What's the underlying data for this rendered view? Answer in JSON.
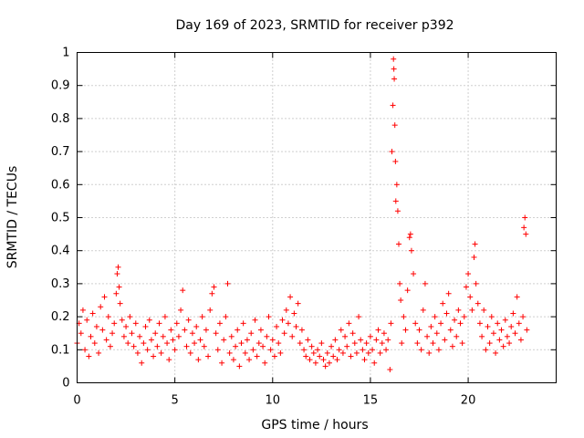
{
  "chart_data": {
    "type": "scatter",
    "title": "Day 169 of 2023, SRMTID for receiver p392",
    "xlabel": "GPS time / hours",
    "ylabel": "SRMTID / TECUs",
    "xlim": [
      0,
      24.5
    ],
    "ylim": [
      0,
      1
    ],
    "xticks": [
      0,
      5,
      10,
      15,
      20
    ],
    "xtick_labels": [
      "0",
      "5",
      "10",
      "15",
      "20"
    ],
    "yticks": [
      0,
      0.1,
      0.2,
      0.3,
      0.4,
      0.5,
      0.6,
      0.7,
      0.8,
      0.9,
      1
    ],
    "ytick_labels": [
      "0",
      "0.1",
      "0.2",
      "0.3",
      "0.4",
      "0.5",
      "0.6",
      "0.7",
      "0.8",
      "0.9",
      "1"
    ],
    "grid": true,
    "marker": "plus",
    "marker_color": "#ff0000",
    "series": [
      {
        "name": "SRMTID",
        "points": [
          [
            0.0,
            0.12
          ],
          [
            0.1,
            0.18
          ],
          [
            0.2,
            0.15
          ],
          [
            0.3,
            0.22
          ],
          [
            0.4,
            0.1
          ],
          [
            0.5,
            0.19
          ],
          [
            0.6,
            0.08
          ],
          [
            0.7,
            0.14
          ],
          [
            0.8,
            0.21
          ],
          [
            0.9,
            0.12
          ],
          [
            1.0,
            0.17
          ],
          [
            1.1,
            0.09
          ],
          [
            1.2,
            0.23
          ],
          [
            1.3,
            0.16
          ],
          [
            1.4,
            0.26
          ],
          [
            1.5,
            0.13
          ],
          [
            1.6,
            0.2
          ],
          [
            1.7,
            0.11
          ],
          [
            1.8,
            0.15
          ],
          [
            1.9,
            0.18
          ],
          [
            2.0,
            0.27
          ],
          [
            2.05,
            0.33
          ],
          [
            2.1,
            0.35
          ],
          [
            2.15,
            0.29
          ],
          [
            2.2,
            0.24
          ],
          [
            2.3,
            0.19
          ],
          [
            2.4,
            0.14
          ],
          [
            2.5,
            0.17
          ],
          [
            2.6,
            0.12
          ],
          [
            2.7,
            0.2
          ],
          [
            2.8,
            0.15
          ],
          [
            2.9,
            0.11
          ],
          [
            3.0,
            0.18
          ],
          [
            3.1,
            0.09
          ],
          [
            3.2,
            0.14
          ],
          [
            3.3,
            0.06
          ],
          [
            3.4,
            0.12
          ],
          [
            3.5,
            0.17
          ],
          [
            3.6,
            0.1
          ],
          [
            3.7,
            0.19
          ],
          [
            3.8,
            0.13
          ],
          [
            3.9,
            0.08
          ],
          [
            4.0,
            0.15
          ],
          [
            4.1,
            0.11
          ],
          [
            4.2,
            0.18
          ],
          [
            4.3,
            0.09
          ],
          [
            4.4,
            0.14
          ],
          [
            4.5,
            0.2
          ],
          [
            4.6,
            0.12
          ],
          [
            4.7,
            0.07
          ],
          [
            4.8,
            0.16
          ],
          [
            4.9,
            0.13
          ],
          [
            5.0,
            0.1
          ],
          [
            5.1,
            0.18
          ],
          [
            5.2,
            0.14
          ],
          [
            5.3,
            0.22
          ],
          [
            5.4,
            0.28
          ],
          [
            5.5,
            0.16
          ],
          [
            5.6,
            0.11
          ],
          [
            5.7,
            0.19
          ],
          [
            5.8,
            0.09
          ],
          [
            5.9,
            0.15
          ],
          [
            6.0,
            0.12
          ],
          [
            6.1,
            0.17
          ],
          [
            6.2,
            0.07
          ],
          [
            6.3,
            0.13
          ],
          [
            6.4,
            0.2
          ],
          [
            6.5,
            0.11
          ],
          [
            6.6,
            0.16
          ],
          [
            6.7,
            0.08
          ],
          [
            6.8,
            0.22
          ],
          [
            6.9,
            0.27
          ],
          [
            7.0,
            0.29
          ],
          [
            7.1,
            0.15
          ],
          [
            7.2,
            0.1
          ],
          [
            7.3,
            0.18
          ],
          [
            7.4,
            0.06
          ],
          [
            7.5,
            0.13
          ],
          [
            7.6,
            0.2
          ],
          [
            7.7,
            0.3
          ],
          [
            7.8,
            0.09
          ],
          [
            7.9,
            0.14
          ],
          [
            8.0,
            0.07
          ],
          [
            8.1,
            0.11
          ],
          [
            8.2,
            0.16
          ],
          [
            8.3,
            0.05
          ],
          [
            8.4,
            0.12
          ],
          [
            8.5,
            0.18
          ],
          [
            8.6,
            0.09
          ],
          [
            8.7,
            0.13
          ],
          [
            8.8,
            0.07
          ],
          [
            8.9,
            0.15
          ],
          [
            9.0,
            0.1
          ],
          [
            9.1,
            0.19
          ],
          [
            9.2,
            0.08
          ],
          [
            9.3,
            0.12
          ],
          [
            9.4,
            0.16
          ],
          [
            9.5,
            0.11
          ],
          [
            9.6,
            0.06
          ],
          [
            9.7,
            0.14
          ],
          [
            9.8,
            0.2
          ],
          [
            9.9,
            0.1
          ],
          [
            10.0,
            0.13
          ],
          [
            10.1,
            0.08
          ],
          [
            10.2,
            0.17
          ],
          [
            10.3,
            0.12
          ],
          [
            10.4,
            0.09
          ],
          [
            10.5,
            0.19
          ],
          [
            10.6,
            0.15
          ],
          [
            10.7,
            0.22
          ],
          [
            10.8,
            0.18
          ],
          [
            10.9,
            0.26
          ],
          [
            11.0,
            0.14
          ],
          [
            11.1,
            0.21
          ],
          [
            11.2,
            0.17
          ],
          [
            11.3,
            0.24
          ],
          [
            11.4,
            0.12
          ],
          [
            11.5,
            0.16
          ],
          [
            11.6,
            0.1
          ],
          [
            11.7,
            0.08
          ],
          [
            11.8,
            0.13
          ],
          [
            11.9,
            0.07
          ],
          [
            12.0,
            0.11
          ],
          [
            12.1,
            0.09
          ],
          [
            12.2,
            0.06
          ],
          [
            12.3,
            0.1
          ],
          [
            12.4,
            0.08
          ],
          [
            12.5,
            0.12
          ],
          [
            12.6,
            0.07
          ],
          [
            12.7,
            0.05
          ],
          [
            12.8,
            0.09
          ],
          [
            12.9,
            0.06
          ],
          [
            13.0,
            0.11
          ],
          [
            13.1,
            0.08
          ],
          [
            13.2,
            0.13
          ],
          [
            13.3,
            0.07
          ],
          [
            13.4,
            0.1
          ],
          [
            13.5,
            0.16
          ],
          [
            13.6,
            0.09
          ],
          [
            13.7,
            0.14
          ],
          [
            13.8,
            0.11
          ],
          [
            13.9,
            0.18
          ],
          [
            14.0,
            0.08
          ],
          [
            14.1,
            0.15
          ],
          [
            14.2,
            0.12
          ],
          [
            14.3,
            0.09
          ],
          [
            14.4,
            0.2
          ],
          [
            14.5,
            0.13
          ],
          [
            14.6,
            0.1
          ],
          [
            14.7,
            0.07
          ],
          [
            14.8,
            0.12
          ],
          [
            14.9,
            0.09
          ],
          [
            15.0,
            0.14
          ],
          [
            15.1,
            0.1
          ],
          [
            15.2,
            0.06
          ],
          [
            15.3,
            0.13
          ],
          [
            15.4,
            0.16
          ],
          [
            15.5,
            0.09
          ],
          [
            15.6,
            0.12
          ],
          [
            15.7,
            0.15
          ],
          [
            15.8,
            0.1
          ],
          [
            15.9,
            0.13
          ],
          [
            16.0,
            0.04
          ],
          [
            16.05,
            0.18
          ],
          [
            16.1,
            0.7
          ],
          [
            16.15,
            0.84
          ],
          [
            16.18,
            0.98
          ],
          [
            16.2,
            0.95
          ],
          [
            16.22,
            0.92
          ],
          [
            16.25,
            0.78
          ],
          [
            16.28,
            0.67
          ],
          [
            16.3,
            0.55
          ],
          [
            16.35,
            0.6
          ],
          [
            16.4,
            0.52
          ],
          [
            16.45,
            0.42
          ],
          [
            16.5,
            0.3
          ],
          [
            16.55,
            0.25
          ],
          [
            16.6,
            0.12
          ],
          [
            16.7,
            0.2
          ],
          [
            16.8,
            0.16
          ],
          [
            16.9,
            0.28
          ],
          [
            17.0,
            0.44
          ],
          [
            17.05,
            0.45
          ],
          [
            17.1,
            0.4
          ],
          [
            17.2,
            0.33
          ],
          [
            17.3,
            0.18
          ],
          [
            17.4,
            0.12
          ],
          [
            17.5,
            0.16
          ],
          [
            17.6,
            0.1
          ],
          [
            17.7,
            0.22
          ],
          [
            17.8,
            0.3
          ],
          [
            17.9,
            0.14
          ],
          [
            18.0,
            0.09
          ],
          [
            18.1,
            0.17
          ],
          [
            18.2,
            0.12
          ],
          [
            18.3,
            0.2
          ],
          [
            18.4,
            0.15
          ],
          [
            18.5,
            0.1
          ],
          [
            18.6,
            0.18
          ],
          [
            18.7,
            0.24
          ],
          [
            18.8,
            0.13
          ],
          [
            18.9,
            0.21
          ],
          [
            19.0,
            0.27
          ],
          [
            19.1,
            0.16
          ],
          [
            19.2,
            0.11
          ],
          [
            19.3,
            0.19
          ],
          [
            19.4,
            0.14
          ],
          [
            19.5,
            0.22
          ],
          [
            19.6,
            0.18
          ],
          [
            19.7,
            0.12
          ],
          [
            19.8,
            0.2
          ],
          [
            19.9,
            0.29
          ],
          [
            20.0,
            0.33
          ],
          [
            20.1,
            0.26
          ],
          [
            20.2,
            0.22
          ],
          [
            20.3,
            0.38
          ],
          [
            20.35,
            0.42
          ],
          [
            20.4,
            0.3
          ],
          [
            20.5,
            0.24
          ],
          [
            20.6,
            0.18
          ],
          [
            20.7,
            0.14
          ],
          [
            20.8,
            0.22
          ],
          [
            20.9,
            0.1
          ],
          [
            21.0,
            0.17
          ],
          [
            21.1,
            0.12
          ],
          [
            21.2,
            0.2
          ],
          [
            21.3,
            0.15
          ],
          [
            21.4,
            0.09
          ],
          [
            21.5,
            0.18
          ],
          [
            21.6,
            0.13
          ],
          [
            21.7,
            0.16
          ],
          [
            21.8,
            0.11
          ],
          [
            21.9,
            0.19
          ],
          [
            22.0,
            0.14
          ],
          [
            22.1,
            0.12
          ],
          [
            22.2,
            0.17
          ],
          [
            22.3,
            0.21
          ],
          [
            22.4,
            0.15
          ],
          [
            22.5,
            0.26
          ],
          [
            22.6,
            0.18
          ],
          [
            22.7,
            0.13
          ],
          [
            22.8,
            0.2
          ],
          [
            22.85,
            0.47
          ],
          [
            22.9,
            0.5
          ],
          [
            22.95,
            0.45
          ],
          [
            23.0,
            0.16
          ]
        ]
      }
    ]
  }
}
